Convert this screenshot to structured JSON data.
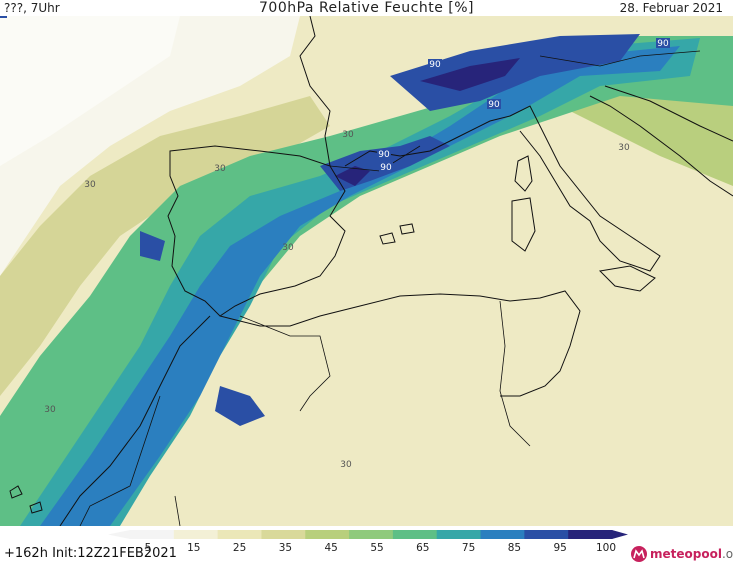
{
  "header": {
    "left": "???, 7Uhr",
    "title": "700hPa Relative Feuchte [%]",
    "date": "28. Februar 2021"
  },
  "footer": {
    "run": "+162h  Init:12Z21FEB2021"
  },
  "logo": {
    "name": "meteopool",
    "tld": ".org"
  },
  "legend": {
    "ticks": [
      "5",
      "15",
      "25",
      "35",
      "45",
      "55",
      "65",
      "75",
      "85",
      "95",
      "100"
    ],
    "colors": [
      "#f4f4f4",
      "#f3f0d6",
      "#ebe7b8",
      "#d9d99a",
      "#b8cf7c",
      "#8fca7c",
      "#5ebf86",
      "#36a7a8",
      "#2b7fbf",
      "#2a4fa5",
      "#27247a"
    ]
  },
  "map": {
    "contour_labels": [
      {
        "text": "30",
        "dark": false
      },
      {
        "text": "30",
        "dark": false
      },
      {
        "text": "30",
        "dark": false
      },
      {
        "text": "30",
        "dark": false
      },
      {
        "text": "30",
        "dark": false
      },
      {
        "text": "30",
        "dark": false
      },
      {
        "text": "30",
        "dark": false
      },
      {
        "text": "90",
        "dark": true
      },
      {
        "text": "90",
        "dark": true
      },
      {
        "text": "90",
        "dark": true
      },
      {
        "text": "90",
        "dark": true
      },
      {
        "text": "90",
        "dark": true
      },
      {
        "text": "90",
        "dark": true
      }
    ]
  }
}
